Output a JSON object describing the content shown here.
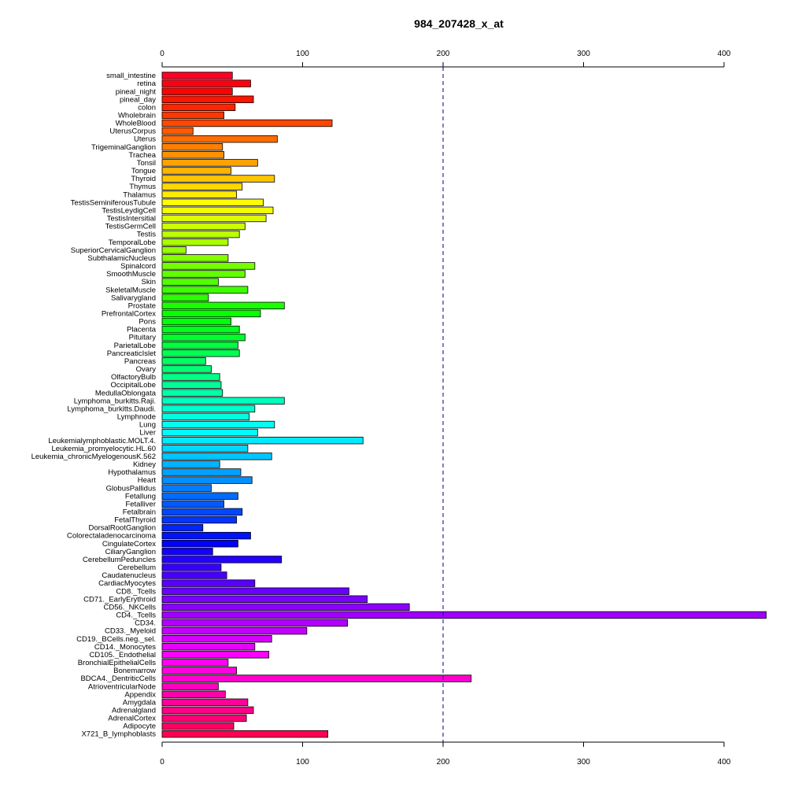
{
  "chart_data": {
    "type": "bar",
    "orientation": "horizontal",
    "title": "984_207428_x_at",
    "xlabel": "",
    "ylabel": "",
    "xlim": [
      0,
      400
    ],
    "x_ticks": [
      0,
      100,
      200,
      300,
      400
    ],
    "axis_positions": [
      "top",
      "bottom"
    ],
    "reference_line": {
      "value": 200,
      "style": "dashed",
      "color": "#000080"
    },
    "bar_outline": "#000000",
    "palette": "rainbow",
    "categories": [
      "small_intestine",
      "retina",
      "pineal_night",
      "pineal_day",
      "colon",
      "Wholebrain",
      "WholeBlood",
      "UterusCorpus",
      "Uterus",
      "TrigeminalGanglion",
      "Trachea",
      "Tonsil",
      "Tongue",
      "Thyroid",
      "Thymus",
      "Thalamus",
      "TestisSeminiferousTubule",
      "TestisLeydigCell",
      "TestisIntersitial",
      "TestisGermCell",
      "Testis",
      "TemporalLobe",
      "SuperiorCervicalGanglion",
      "SubthalamicNucleus",
      "Spinalcord",
      "SmoothMuscle",
      "Skin",
      "SkeletalMuscle",
      "Salivarygland",
      "Prostate",
      "PrefrontalCortex",
      "Pons",
      "Placenta",
      "Pituitary",
      "ParietalLobe",
      "PancreaticIslet",
      "Pancreas",
      "Ovary",
      "OlfactoryBulb",
      "OccipitalLobe",
      "MedullaOblongata",
      "Lymphoma_burkitts.Raji.",
      "Lymphoma_burkitts.Daudi.",
      "Lymphnode",
      "Lung",
      "Liver",
      "Leukemialymphoblastic.MOLT.4.",
      "Leukemia_promyelocytic.HL.60",
      "Leukemia_chronicMyelogenousK.562",
      "Kidney",
      "Hypothalamus",
      "Heart",
      "GlobusPallidus",
      "Fetallung",
      "Fetalliver",
      "Fetalbrain",
      "FetalThyroid",
      "DorsalRootGanglion",
      "Colorectaladenocarcinoma",
      "CingulateCortex",
      "CiliaryGanglion",
      "CerebellumPeduncles",
      "Cerebellum",
      "Caudatenucleus",
      "CardiacMyocytes",
      "CD8._Tcells",
      "CD71._EarlyErythroid",
      "CD56._NKCells",
      "CD4._Tcells",
      "CD34.",
      "CD33._Myeloid",
      "CD19._BCells.neg._sel.",
      "CD14._Monocytes",
      "CD105._Endothelial",
      "BronchialEpithelialCells",
      "Bonemarrow",
      "BDCA4._DentriticCells",
      "AtrioventricularNode",
      "Appendix",
      "Amygdala",
      "Adrenalgland",
      "AdrenalCortex",
      "Adipocyte",
      "X721_B_lymphoblasts"
    ],
    "values": [
      50,
      63,
      50,
      65,
      52,
      44,
      121,
      22,
      82,
      43,
      44,
      68,
      49,
      80,
      57,
      53,
      72,
      79,
      74,
      59,
      55,
      47,
      17,
      47,
      66,
      59,
      40,
      61,
      33,
      87,
      70,
      49,
      55,
      59,
      54,
      55,
      31,
      35,
      41,
      42,
      43,
      87,
      66,
      62,
      80,
      68,
      143,
      61,
      78,
      41,
      56,
      64,
      35,
      54,
      44,
      57,
      53,
      29,
      63,
      54,
      36,
      85,
      42,
      46,
      66,
      133,
      146,
      176,
      430,
      132,
      103,
      78,
      66,
      76,
      47,
      53,
      220,
      40,
      45,
      61,
      65,
      60,
      51,
      118
    ]
  }
}
